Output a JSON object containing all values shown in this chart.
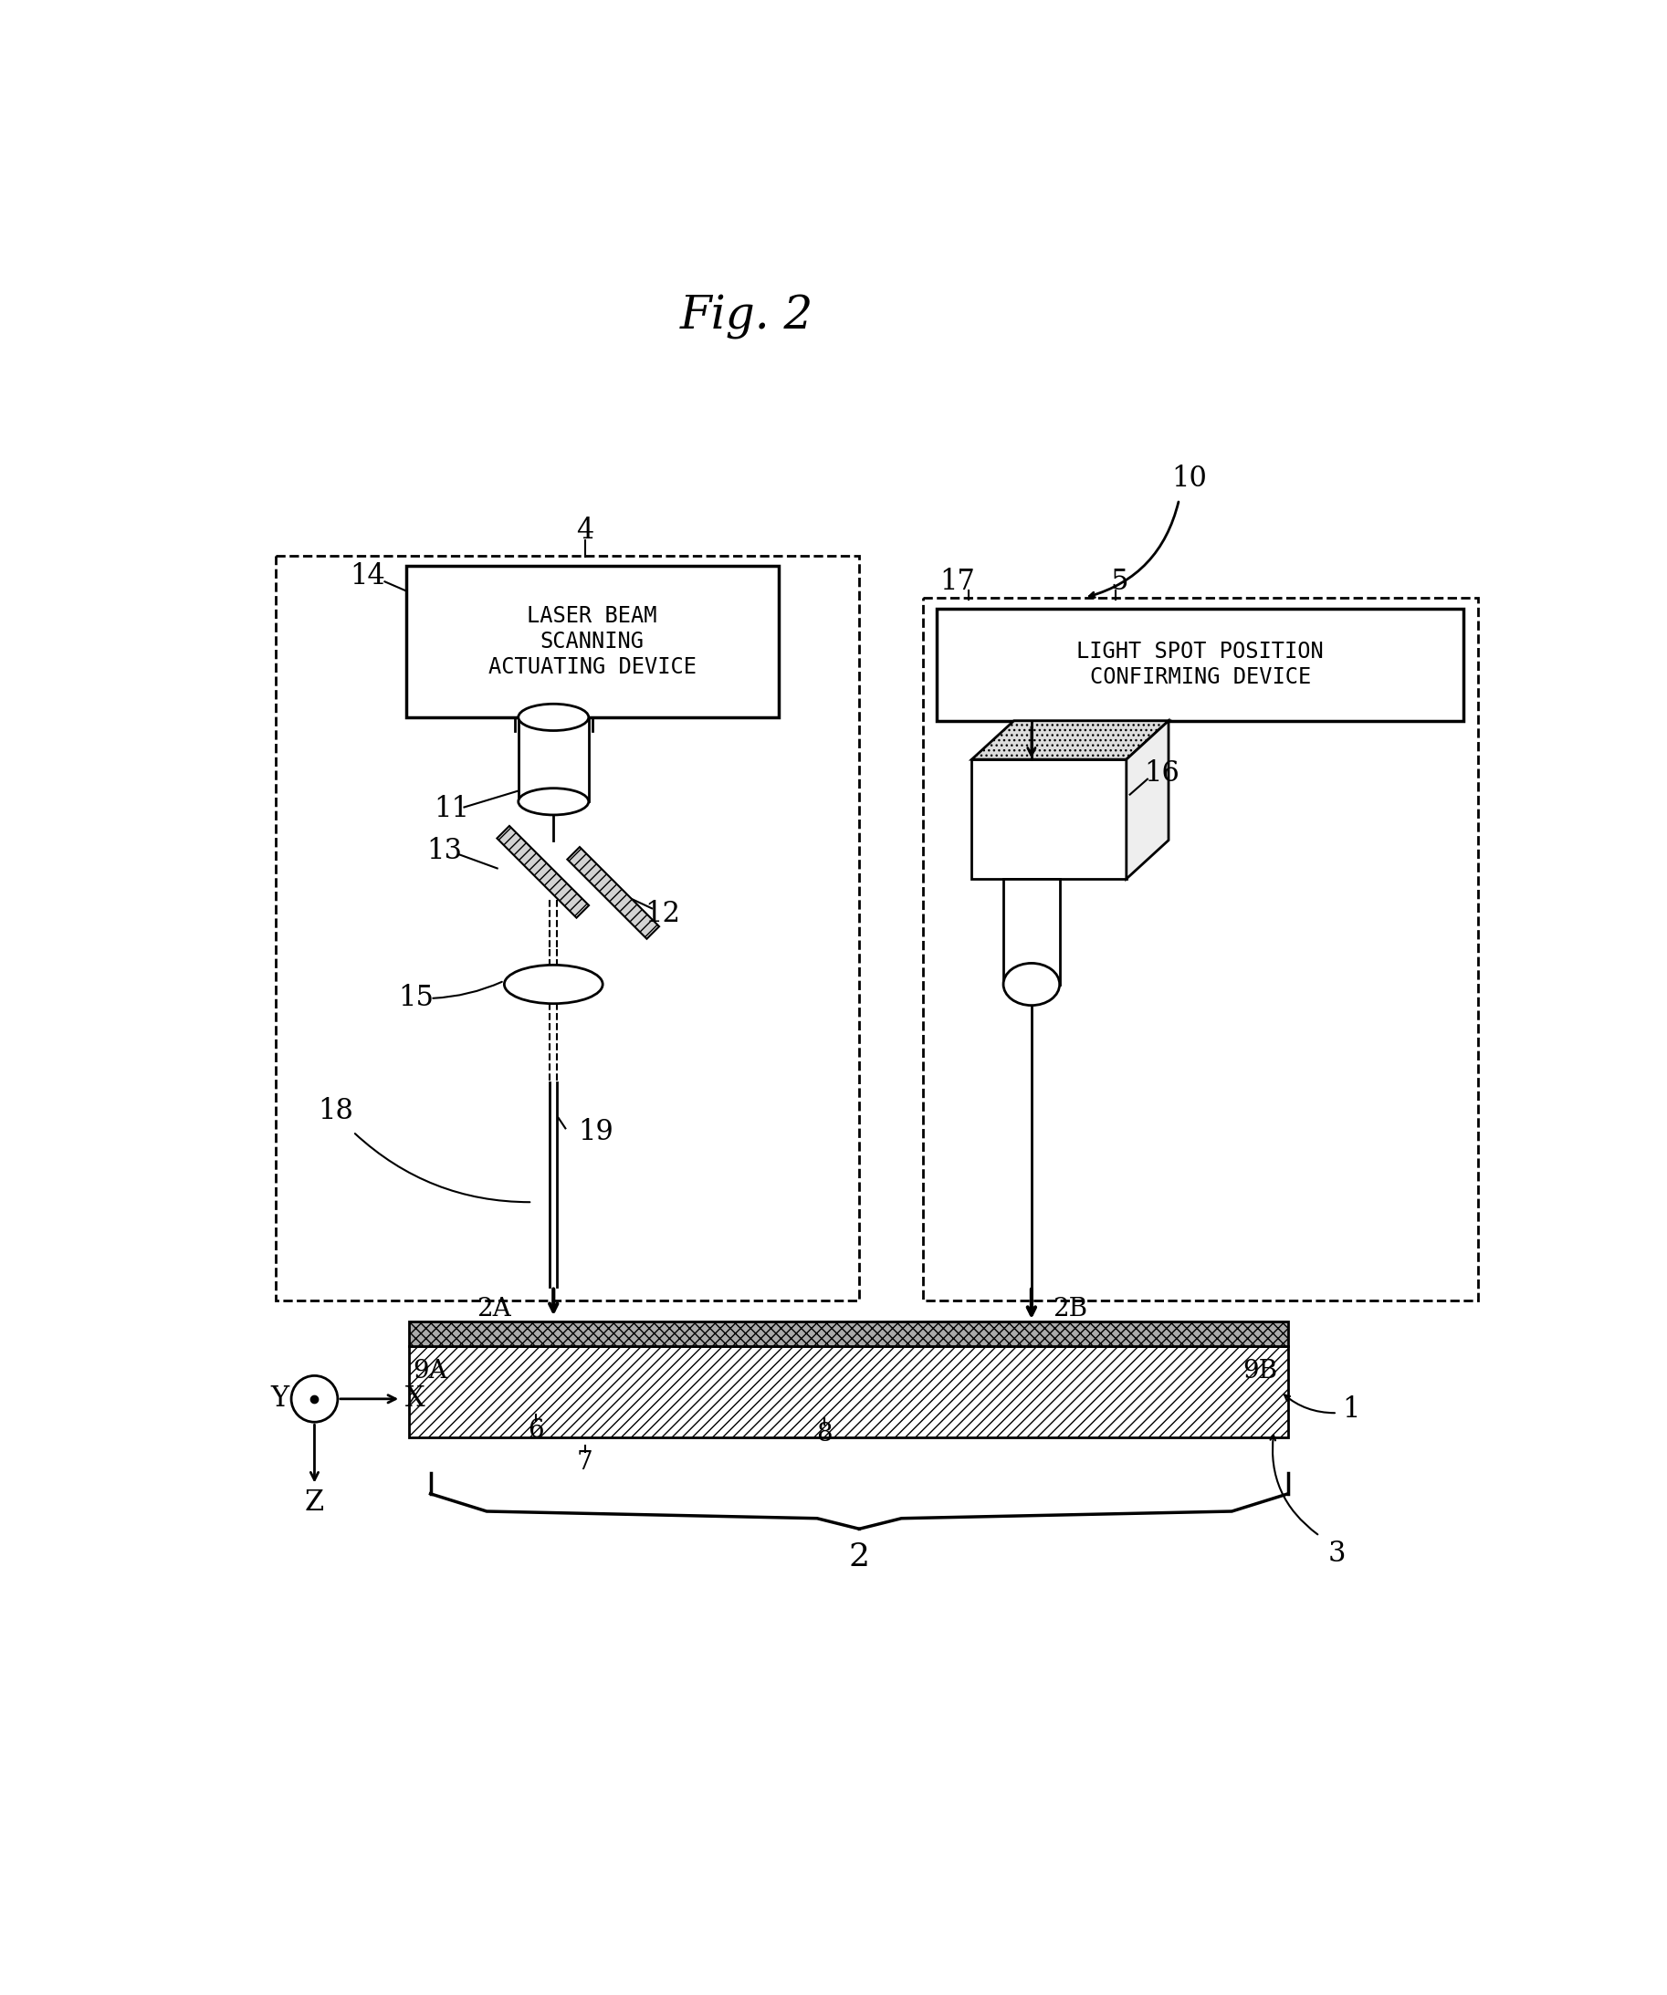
{
  "title": "Fig. 2",
  "bg_color": "#ffffff",
  "fig_width": 18.26,
  "fig_height": 21.86,
  "labels": {
    "10": "10",
    "4": "4",
    "5": "5",
    "14": "14",
    "11": "11",
    "13": "13",
    "12": "12",
    "15": "15",
    "18": "18",
    "19": "19",
    "17": "17",
    "16": "16",
    "2A": "2A",
    "2B": "2B",
    "9A": "9A",
    "9B": "9B",
    "1": "1",
    "2": "2",
    "3": "3",
    "6": "6",
    "7": "7",
    "8": "8"
  },
  "lbsd": "LASER BEAM\nSCANNING\nACTUATING DEVICE",
  "lspcd": "LIGHT SPOT POSITION\nCONFIRMING DEVICE",
  "axis_labels": [
    "Y",
    "X",
    "Z"
  ]
}
